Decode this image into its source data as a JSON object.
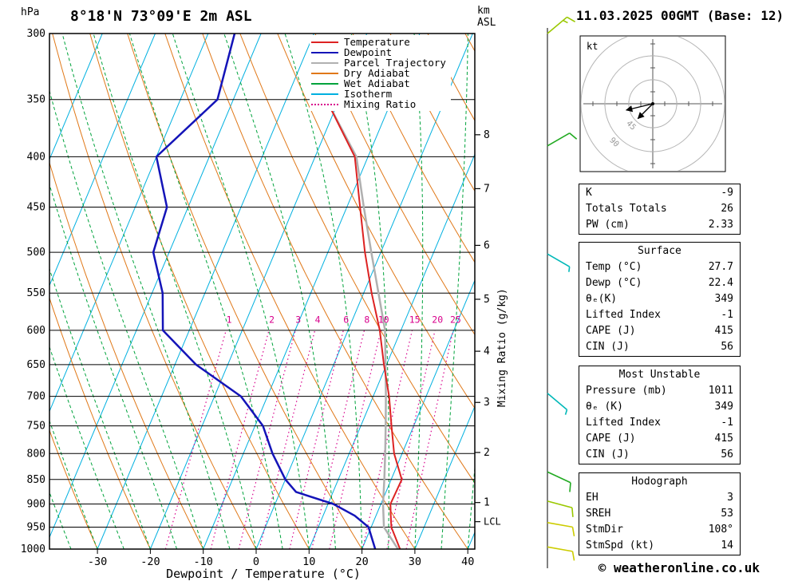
{
  "title": "8°18'N 73°09'E 2m ASL",
  "datetime": "11.03.2025 00GMT (Base: 12)",
  "copyright": "© weatheronline.co.uk",
  "axes": {
    "pressure_unit": "hPa",
    "km_unit_line1": "km",
    "km_unit_line2": "ASL",
    "x_label": "Dewpoint / Temperature (°C)",
    "mixing_label": "Mixing Ratio (g/kg)",
    "pressure_ticks": [
      300,
      350,
      400,
      450,
      500,
      550,
      600,
      650,
      700,
      750,
      800,
      850,
      900,
      950,
      1000
    ],
    "temp_ticks": [
      -30,
      -20,
      -10,
      0,
      10,
      20,
      30,
      40
    ],
    "lcl_label": "LCL"
  },
  "legend": [
    {
      "label": "Temperature",
      "color": "#dd2222",
      "style": "solid"
    },
    {
      "label": "Dewpoint",
      "color": "#1414b8",
      "style": "solid"
    },
    {
      "label": "Parcel Trajectory",
      "color": "#b0b0b0",
      "style": "solid"
    },
    {
      "label": "Dry Adiabat",
      "color": "#e07818",
      "style": "solid"
    },
    {
      "label": "Wet Adiabat",
      "color": "#00a33c",
      "style": "solid"
    },
    {
      "label": "Isotherm",
      "color": "#00b0e0",
      "style": "solid"
    },
    {
      "label": "Mixing Ratio",
      "color": "#d8008c",
      "style": "dotted"
    }
  ],
  "stats": {
    "indices": {
      "rows": [
        [
          "K",
          "-9"
        ],
        [
          "Totals Totals",
          "26"
        ],
        [
          "PW (cm)",
          "2.33"
        ]
      ]
    },
    "surface": {
      "title": "Surface",
      "rows": [
        [
          "Temp (°C)",
          "27.7"
        ],
        [
          "Dewp (°C)",
          "22.4"
        ],
        [
          "θₑ(K)",
          "349"
        ],
        [
          "Lifted Index",
          "-1"
        ],
        [
          "CAPE (J)",
          "415"
        ],
        [
          "CIN (J)",
          "56"
        ]
      ]
    },
    "most_unstable": {
      "title": "Most Unstable",
      "rows": [
        [
          "Pressure (mb)",
          "1011"
        ],
        [
          "θₑ (K)",
          "349"
        ],
        [
          "Lifted Index",
          "-1"
        ],
        [
          "CAPE (J)",
          "415"
        ],
        [
          "CIN (J)",
          "56"
        ]
      ]
    },
    "hodograph": {
      "title": "Hodograph",
      "rows": [
        [
          "EH",
          "3"
        ],
        [
          "SREH",
          "53"
        ],
        [
          "StmDir",
          "108°"
        ],
        [
          "StmSpd (kt)",
          "14"
        ]
      ]
    }
  },
  "chart_data": {
    "type": "skewt",
    "pressure_range": [
      300,
      1000
    ],
    "temp_axis_ticks": [
      -30,
      -20,
      -10,
      0,
      10,
      20,
      30,
      40
    ],
    "isotherm_step": 10,
    "dry_adiabat_step": 10,
    "wet_adiabat_step": 5,
    "mixing_ratio_values": [
      1,
      2,
      3,
      4,
      6,
      8,
      10,
      15,
      20,
      25
    ],
    "temperature_profile": [
      [
        1011,
        27.7
      ],
      [
        1000,
        27.2
      ],
      [
        950,
        23.8
      ],
      [
        925,
        22.8
      ],
      [
        900,
        21.8
      ],
      [
        850,
        22.0
      ],
      [
        800,
        18.5
      ],
      [
        750,
        15.8
      ],
      [
        700,
        13.0
      ],
      [
        650,
        9.5
      ],
      [
        600,
        6.0
      ],
      [
        550,
        1.5
      ],
      [
        500,
        -3.0
      ],
      [
        450,
        -7.5
      ],
      [
        400,
        -12.5
      ],
      [
        352,
        -22.0
      ]
    ],
    "dewpoint_profile": [
      [
        1011,
        22.4
      ],
      [
        1000,
        22.5
      ],
      [
        950,
        19.5
      ],
      [
        925,
        16
      ],
      [
        900,
        11
      ],
      [
        875,
        3
      ],
      [
        850,
        0
      ],
      [
        800,
        -4.5
      ],
      [
        750,
        -8.5
      ],
      [
        700,
        -15
      ],
      [
        650,
        -26
      ],
      [
        600,
        -35
      ],
      [
        550,
        -38
      ],
      [
        500,
        -43
      ],
      [
        450,
        -44
      ],
      [
        400,
        -50
      ],
      [
        350,
        -43
      ],
      [
        300,
        -45
      ]
    ],
    "parcel_profile": [
      [
        1011,
        27.7
      ],
      [
        1000,
        26.8
      ],
      [
        950,
        22.4
      ],
      [
        900,
        20.4
      ],
      [
        850,
        18.7
      ],
      [
        800,
        16.8
      ],
      [
        750,
        14.7
      ],
      [
        700,
        12.4
      ],
      [
        650,
        9.8
      ],
      [
        600,
        7.0
      ],
      [
        550,
        2.8
      ],
      [
        500,
        -1.8
      ],
      [
        450,
        -6.8
      ],
      [
        400,
        -12.2
      ],
      [
        352,
        -22.0
      ]
    ],
    "km_ticks": [
      {
        "km": 8,
        "p": 380
      },
      {
        "km": 7,
        "p": 431
      },
      {
        "km": 6,
        "p": 492
      },
      {
        "km": 5,
        "p": 558
      },
      {
        "km": 4,
        "p": 630
      },
      {
        "km": 3,
        "p": 710
      },
      {
        "km": 2,
        "p": 798
      },
      {
        "km": 1,
        "p": 897
      }
    ],
    "lcl_pressure": 938,
    "wind_barbs": [
      {
        "p": 300,
        "spd": 15,
        "dir": 50,
        "color": "#9ac800"
      },
      {
        "p": 390,
        "spd": 10,
        "dir": 60,
        "color": "#22aa22"
      },
      {
        "p": 502,
        "spd": 5,
        "dir": 120,
        "color": "#00b8b8"
      },
      {
        "p": 695,
        "spd": 5,
        "dir": 130,
        "color": "#00b8b8"
      },
      {
        "p": 835,
        "spd": 10,
        "dir": 115,
        "color": "#22aa22"
      },
      {
        "p": 894,
        "spd": 10,
        "dir": 105,
        "color": "#9ac800"
      },
      {
        "p": 940,
        "spd": 10,
        "dir": 100,
        "color": "#cccc00"
      },
      {
        "p": 995,
        "spd": 10,
        "dir": 100,
        "color": "#cccc00"
      }
    ],
    "hodograph": {
      "unit": "kt",
      "ring_interval_kt": 45,
      "ring_labels": [
        45,
        90
      ],
      "vectors_kt": [
        {
          "u": -50,
          "v": -12
        },
        {
          "u": -28,
          "v": -28
        }
      ]
    },
    "colors": {
      "temperature": "#dd2222",
      "dewpoint": "#1414b8",
      "parcel": "#b0b0b0",
      "dry_adiabat": "#e07818",
      "wet_adiabat": "#00a33c",
      "isotherm": "#00b0e0",
      "mixing_ratio": "#d8008c",
      "grid": "#000000"
    }
  }
}
